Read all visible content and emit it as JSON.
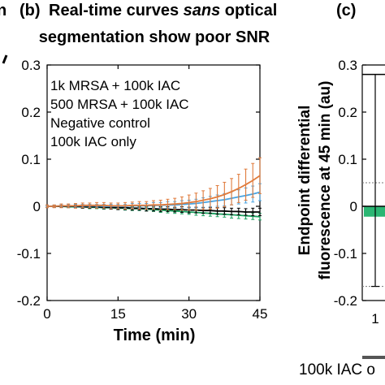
{
  "header": {
    "left_fragment": "n",
    "panel_b_label": "(b)",
    "title_pre": "Real-time curves ",
    "title_italic": "sans",
    "title_post": " optical",
    "title_line2": "segmentation show poor SNR",
    "panel_c_label": "(c)"
  },
  "colors": {
    "orange": "#e07b3c",
    "blue": "#4aa3e0",
    "black": "#000000",
    "green": "#1aa05e",
    "green_bar": "#2bb673",
    "grey_line": "#555555"
  },
  "chart_data": [
    {
      "type": "line",
      "title": "Real-time curves sans optical segmentation show poor SNR",
      "xlabel": "Time (min)",
      "ylabel": "",
      "xlim": [
        0,
        45
      ],
      "ylim": [
        -0.2,
        0.3
      ],
      "xticks": [
        "0",
        "15",
        "30",
        "45"
      ],
      "yticks": [
        "-0.2",
        "-0.1",
        "0",
        "0.1",
        "0.2",
        "0.3"
      ],
      "grid": false,
      "legend": "top-left, colored text",
      "error_bars": true,
      "x": [
        0,
        1.5,
        3,
        4.5,
        6,
        7.5,
        9,
        10.5,
        12,
        13.5,
        15,
        16.5,
        18,
        19.5,
        21,
        22.5,
        24,
        25.5,
        27,
        28.5,
        30,
        31.5,
        33,
        34.5,
        36,
        37.5,
        39,
        40.5,
        42,
        43.5,
        45
      ],
      "series": [
        {
          "name": "1k MRSA + 100k IAC",
          "color": "orange",
          "values": [
            0.0,
            0.0,
            0.001,
            0.001,
            0.001,
            0.002,
            0.002,
            0.002,
            0.002,
            0.001,
            0.001,
            0.001,
            0.002,
            0.002,
            0.002,
            0.003,
            0.003,
            0.004,
            0.005,
            0.006,
            0.008,
            0.01,
            0.013,
            0.016,
            0.02,
            0.025,
            0.031,
            0.038,
            0.046,
            0.055,
            0.065
          ],
          "errors": [
            0.003,
            0.003,
            0.004,
            0.004,
            0.005,
            0.005,
            0.005,
            0.006,
            0.006,
            0.006,
            0.006,
            0.007,
            0.007,
            0.008,
            0.008,
            0.009,
            0.01,
            0.011,
            0.012,
            0.014,
            0.016,
            0.018,
            0.02,
            0.022,
            0.024,
            0.026,
            0.028,
            0.03,
            0.033,
            0.036,
            0.038
          ]
        },
        {
          "name": "500 MRSA + 100k IAC",
          "color": "blue",
          "values": [
            0.0,
            0.0,
            0.001,
            0.001,
            0.001,
            0.001,
            0.001,
            0.001,
            0.0,
            0.0,
            0.0,
            0.0,
            0.001,
            0.001,
            0.001,
            0.002,
            0.002,
            0.003,
            0.003,
            0.004,
            0.005,
            0.006,
            0.008,
            0.01,
            0.012,
            0.014,
            0.017,
            0.02,
            0.023,
            0.026,
            0.03
          ],
          "errors": [
            0.002,
            0.002,
            0.002,
            0.003,
            0.003,
            0.003,
            0.003,
            0.003,
            0.004,
            0.004,
            0.004,
            0.004,
            0.005,
            0.005,
            0.005,
            0.006,
            0.006,
            0.007,
            0.007,
            0.008,
            0.008,
            0.009,
            0.01,
            0.011,
            0.012,
            0.013,
            0.014,
            0.015,
            0.016,
            0.017,
            0.018
          ]
        },
        {
          "name": "Negative control",
          "color": "black",
          "values": [
            0.0,
            0.0,
            0.0,
            0.0,
            0.0,
            -0.001,
            -0.001,
            -0.001,
            -0.002,
            -0.002,
            -0.003,
            -0.003,
            -0.004,
            -0.004,
            -0.005,
            -0.005,
            -0.006,
            -0.006,
            -0.007,
            -0.007,
            -0.008,
            -0.008,
            -0.009,
            -0.009,
            -0.01,
            -0.01,
            -0.011,
            -0.011,
            -0.012,
            -0.012,
            -0.012
          ],
          "errors": [
            0.002,
            0.002,
            0.002,
            0.002,
            0.003,
            0.003,
            0.003,
            0.003,
            0.003,
            0.004,
            0.004,
            0.004,
            0.004,
            0.004,
            0.005,
            0.005,
            0.005,
            0.005,
            0.005,
            0.006,
            0.006,
            0.006,
            0.006,
            0.006,
            0.007,
            0.007,
            0.007,
            0.007,
            0.007,
            0.008,
            0.008
          ]
        },
        {
          "name": "100k IAC only",
          "color": "green",
          "values": [
            0.0,
            0.0,
            0.0,
            -0.001,
            -0.001,
            -0.001,
            -0.002,
            -0.002,
            -0.003,
            -0.003,
            -0.004,
            -0.004,
            -0.005,
            -0.005,
            -0.006,
            -0.007,
            -0.008,
            -0.009,
            -0.01,
            -0.011,
            -0.012,
            -0.013,
            -0.014,
            -0.015,
            -0.016,
            -0.017,
            -0.018,
            -0.019,
            -0.02,
            -0.021,
            -0.022
          ],
          "errors": [
            0.002,
            0.002,
            0.002,
            0.002,
            0.002,
            0.003,
            0.003,
            0.003,
            0.003,
            0.003,
            0.003,
            0.004,
            0.004,
            0.004,
            0.004,
            0.004,
            0.005,
            0.005,
            0.005,
            0.005,
            0.005,
            0.006,
            0.006,
            0.006,
            0.006,
            0.006,
            0.007,
            0.007,
            0.007,
            0.007,
            0.007
          ]
        }
      ]
    },
    {
      "type": "bar",
      "title": "",
      "ylabel_line1": "Endpoint differential",
      "ylabel_line2": "fluorescence at 45 min (au)",
      "ylim": [
        -0.2,
        0.3
      ],
      "yticks": [
        "-0.2",
        "-0.1",
        "0",
        "0.1",
        "0.2",
        "0.3"
      ],
      "categories": [
        "1"
      ],
      "category_label": "100k IAC o",
      "values": [
        -0.022
      ],
      "whisker": [
        -0.17,
        0.28
      ],
      "reference_band": [
        -0.17,
        0.05
      ]
    }
  ]
}
